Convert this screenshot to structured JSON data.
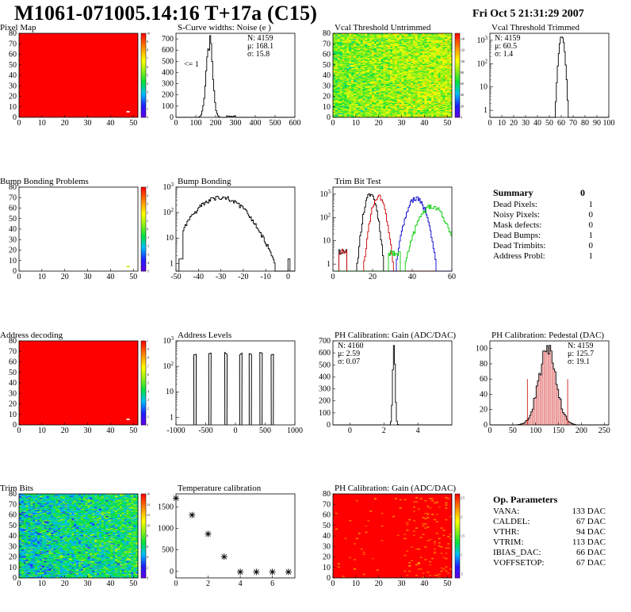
{
  "header": {
    "title": "M1061-071005.14:16 T+17a (C15)",
    "date": "Fri Oct  5 21:31:29 2007"
  },
  "chart_data": [
    {
      "id": "pixel-map",
      "type": "heatmap",
      "title": "Pixel Map",
      "xlim": [
        0,
        52
      ],
      "ylim": [
        0,
        80
      ],
      "xticks": [
        0,
        10,
        20,
        30,
        40,
        50
      ],
      "yticks": [
        0,
        10,
        20,
        30,
        40,
        50,
        60,
        70,
        80
      ],
      "zlim": [
        0,
        10
      ],
      "zticks": [
        0,
        1,
        2,
        3,
        4,
        5,
        6,
        7,
        8,
        9,
        10
      ],
      "fill_level": 10,
      "hot_pixels": [
        {
          "x": 47,
          "y": 5,
          "z": 0
        }
      ]
    },
    {
      "id": "scurve-noise",
      "type": "line",
      "title": "S-Curve widths: Noise (e )",
      "xlim": [
        0,
        600
      ],
      "ylim": [
        0,
        750
      ],
      "xticks": [
        0,
        100,
        200,
        300,
        400,
        500,
        600
      ],
      "yticks": [
        0,
        100,
        200,
        300,
        400,
        500,
        600,
        700
      ],
      "peak": 690,
      "mean": 168.1,
      "sigma": 15.8,
      "stats": {
        "n": "N: 4159",
        "mu": "μ: 168.1",
        "sigma": "σ: 15.8"
      },
      "annotation": "<= 1"
    },
    {
      "id": "vcal-untrimmed",
      "type": "heatmap",
      "title": "Vcal Threshold Untrimmed",
      "xlim": [
        0,
        52
      ],
      "ylim": [
        0,
        80
      ],
      "xticks": [
        0,
        10,
        20,
        30,
        40,
        50
      ],
      "yticks": [
        0,
        10,
        20,
        30,
        40,
        50,
        60,
        70,
        80
      ],
      "zlim": [
        0,
        150
      ],
      "zticks": [
        0,
        20,
        40,
        60,
        80,
        100,
        120,
        140
      ],
      "mean_level": 85,
      "spread": 18
    },
    {
      "id": "vcal-trimmed",
      "type": "line",
      "title": "Vcal Threshold Trimmed",
      "xlim": [
        0,
        100
      ],
      "ylog": true,
      "ylim": [
        0.5,
        2000
      ],
      "xticks": [
        0,
        10,
        20,
        30,
        40,
        50,
        60,
        70,
        80,
        90,
        100
      ],
      "peak": 1500,
      "mean": 60.5,
      "sigma": 1.4,
      "stats": {
        "n": "N: 4159",
        "mu": "μ: 60.5",
        "sigma": "σ: 1.4"
      }
    },
    {
      "id": "bump-problems",
      "type": "heatmap",
      "title": "Bump Bonding Problems",
      "xlim": [
        0,
        52
      ],
      "ylim": [
        0,
        80
      ],
      "xticks": [
        0,
        10,
        20,
        30,
        40,
        50
      ],
      "yticks": [
        0,
        10,
        20,
        30,
        40,
        50,
        60,
        70,
        80
      ],
      "zlim": [
        -5,
        5
      ],
      "zticks": [
        -5,
        -4,
        -3,
        -2,
        -1,
        0,
        1,
        2,
        3,
        4,
        5
      ],
      "hot_pixels": [
        {
          "x": 47,
          "y": 4,
          "z": 1
        }
      ]
    },
    {
      "id": "bump-bonding",
      "type": "line",
      "title": "Bump Bonding",
      "xlim": [
        -50,
        3
      ],
      "ylog": true,
      "ylim": [
        0.5,
        1000
      ],
      "xticks": [
        -50,
        -40,
        -30,
        -20,
        -10,
        0
      ],
      "peak": 400,
      "mean": -30,
      "sigma": 7
    },
    {
      "id": "trim-bit-test",
      "type": "line",
      "title": "Trim Bit Test",
      "xlim": [
        0,
        60
      ],
      "ylog": true,
      "ylim": [
        0.5,
        2000
      ],
      "xticks": [
        0,
        20,
        40,
        60
      ],
      "series": [
        {
          "color": "#000000",
          "peak": 1000,
          "mean": 19,
          "sigma": 1.8
        },
        {
          "color": "#cc0000",
          "peak": 800,
          "mean": 23,
          "sigma": 2.0
        },
        {
          "color": "#0000cc",
          "peak": 700,
          "mean": 42,
          "sigma": 2.8
        },
        {
          "color": "#00cc00",
          "peak": 300,
          "mean": 50,
          "sigma": 4.0
        }
      ]
    },
    {
      "id": "address-decoding",
      "type": "heatmap",
      "title": "Address decoding",
      "xlim": [
        0,
        52
      ],
      "ylim": [
        0,
        80
      ],
      "xticks": [
        0,
        10,
        20,
        30,
        40,
        50
      ],
      "yticks": [
        0,
        10,
        20,
        30,
        40,
        50,
        60,
        70,
        80
      ],
      "zlim": [
        0,
        1
      ],
      "zticks": [
        0,
        0.1,
        0.2,
        0.3,
        0.4,
        0.5,
        0.6,
        0.7,
        0.8,
        0.9,
        1
      ],
      "fill_level": 1,
      "hot_pixels": [
        {
          "x": 47,
          "y": 5,
          "z": 0
        }
      ]
    },
    {
      "id": "address-levels",
      "type": "line",
      "title": "Address Levels",
      "xlim": [
        -1000,
        1000
      ],
      "ylog": true,
      "ylim": [
        0.5,
        1000
      ],
      "xticks": [
        -1000,
        -500,
        0,
        500,
        1000
      ],
      "peaks": [
        -680,
        -430,
        -160,
        90,
        250,
        430,
        620
      ],
      "peak_height": 350
    },
    {
      "id": "ph-gain",
      "type": "line",
      "title": "PH Calibration: Gain (ADC/DAC)",
      "xlim": [
        -1,
        6
      ],
      "ylim": [
        0,
        700
      ],
      "xticks": [
        0,
        2,
        4
      ],
      "yticks": [
        0,
        100,
        200,
        300,
        400,
        500,
        600,
        700
      ],
      "peak": 670,
      "mean": 2.59,
      "sigma": 0.07,
      "stats": {
        "n": "N: 4160",
        "mu": "μ: 2.59",
        "sigma": "σ: 0.07"
      }
    },
    {
      "id": "ph-pedestal",
      "type": "line",
      "title": "PH Calibration: Pedestal (DAC)",
      "xlim": [
        0,
        260
      ],
      "ylim": [
        0,
        110
      ],
      "xticks": [
        0,
        50,
        100,
        150,
        200,
        250
      ],
      "yticks": [
        0,
        20,
        40,
        60,
        80,
        100
      ],
      "peak": 95,
      "mean": 125.7,
      "sigma": 19.1,
      "cut_lines": [
        82,
        170
      ],
      "stats": {
        "n": "N: 4159",
        "mu": "μ: 125.7",
        "sigma": "σ: 19.1"
      }
    },
    {
      "id": "trim-bits",
      "type": "heatmap",
      "title": "Trim Bits",
      "xlim": [
        0,
        52
      ],
      "ylim": [
        0,
        80
      ],
      "xticks": [
        0,
        10,
        20,
        30,
        40,
        50
      ],
      "yticks": [
        0,
        10,
        20,
        30,
        40,
        50,
        60,
        70,
        80
      ],
      "zlim": [
        0,
        16
      ],
      "zticks": [
        0,
        2,
        4,
        6,
        8,
        10,
        12,
        14,
        16
      ],
      "mean_level": 6,
      "spread": 2.2
    },
    {
      "id": "temperature-calibration",
      "type": "scatter",
      "title": "Temperature calibration",
      "xlim": [
        0,
        7.4
      ],
      "ylim": [
        -150,
        1800
      ],
      "xticks": [
        0,
        2,
        4,
        6
      ],
      "yticks": [
        0,
        500,
        1000,
        1500
      ],
      "x": [
        0,
        1,
        2,
        3,
        4,
        5,
        6,
        7
      ],
      "y": [
        1700,
        1310,
        870,
        340,
        -10,
        -10,
        -10,
        -10
      ]
    },
    {
      "id": "ph-gain-map",
      "type": "heatmap",
      "title": "PH Calibration: Gain (ADC/DAC)",
      "xlim": [
        0,
        52
      ],
      "ylim": [
        0,
        80
      ],
      "xticks": [
        0,
        10,
        20,
        30,
        40,
        50
      ],
      "yticks": [
        0,
        10,
        20,
        30,
        40,
        50,
        60,
        70,
        80
      ],
      "zlim": [
        0.4,
        2.6
      ],
      "zticks": [
        0.5,
        1,
        1.5,
        2,
        2.5
      ],
      "fill_level": 2.6
    }
  ],
  "summary": {
    "title": "Summary",
    "total": "0",
    "rows": [
      {
        "label": "Dead Pixels:",
        "value": "1"
      },
      {
        "label": "Noisy Pixels:",
        "value": "0"
      },
      {
        "label": "Mask defects:",
        "value": "0"
      },
      {
        "label": "Dead Bumps:",
        "value": "1"
      },
      {
        "label": "Dead Trimbits:",
        "value": "0"
      },
      {
        "label": "Address Probl:",
        "value": "1"
      }
    ]
  },
  "op_params": {
    "title": "Op. Parameters",
    "rows": [
      {
        "label": "VANA:",
        "value": "133 DAC"
      },
      {
        "label": "CALDEL:",
        "value": "67 DAC"
      },
      {
        "label": "VTHR:",
        "value": "94 DAC"
      },
      {
        "label": "VTRIM:",
        "value": "113 DAC"
      },
      {
        "label": "IBIAS_DAC:",
        "value": "66 DAC"
      },
      {
        "label": "VOFFSETOP:",
        "value": "67 DAC"
      }
    ]
  }
}
